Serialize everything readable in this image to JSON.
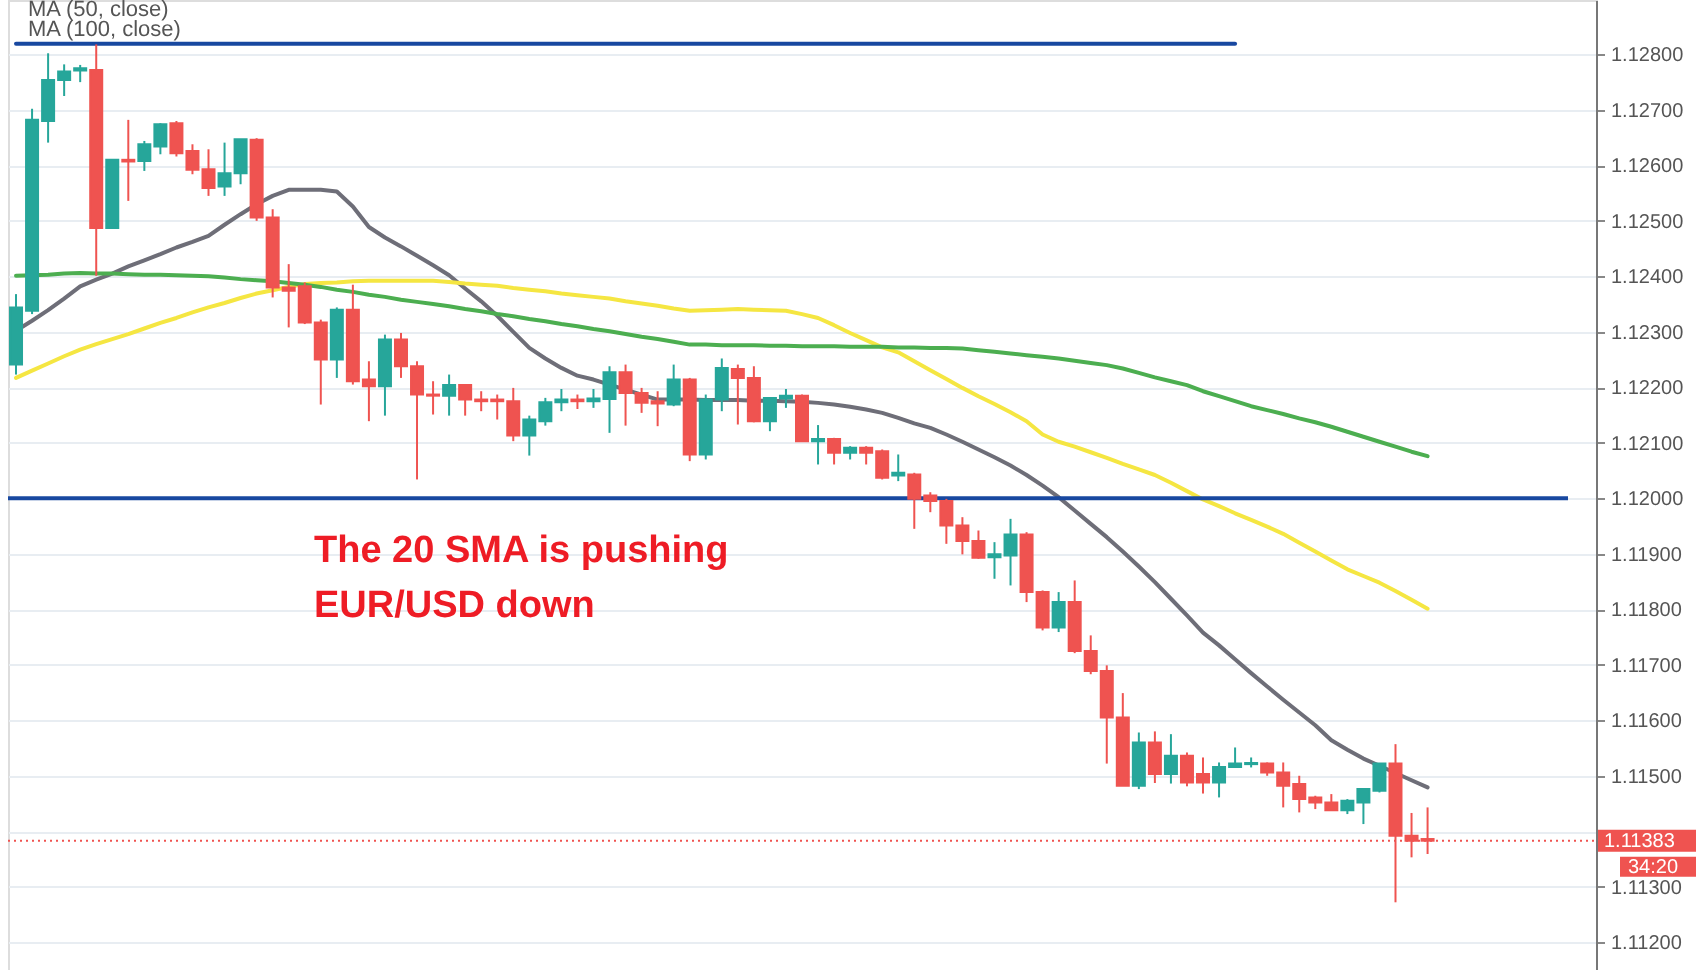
{
  "chart_data": {
    "type": "candlestick",
    "categories": [
      null,
      null,
      null,
      null,
      null,
      null,
      null,
      null,
      null,
      null,
      null,
      null,
      null,
      null,
      null,
      null,
      null,
      null,
      null,
      null,
      null,
      null,
      null,
      null,
      null,
      null,
      null,
      null,
      null,
      null,
      null,
      null,
      null,
      null,
      null,
      null,
      null,
      null,
      null,
      null,
      null,
      null,
      null,
      null,
      null,
      null,
      null,
      null,
      null,
      null,
      null,
      null,
      null,
      null,
      null,
      null,
      null,
      null,
      null,
      null,
      null,
      null,
      null,
      null,
      null,
      null,
      null,
      null,
      null,
      null,
      null,
      null,
      null,
      null,
      null,
      null,
      null,
      null,
      null,
      null,
      null,
      null,
      null,
      null,
      null,
      null,
      null,
      null,
      null,
      null,
      null,
      null,
      null,
      null,
      null,
      null,
      null,
      null,
      null
    ],
    "ohlc": [
      [
        1.12241,
        1.12368,
        1.12223,
        1.12344
      ],
      [
        1.12338,
        1.12702,
        1.12332,
        1.12682
      ],
      [
        1.1268,
        1.12802,
        1.12641,
        1.12754
      ],
      [
        1.12754,
        1.12782,
        1.12725,
        1.12769
      ],
      [
        1.12771,
        1.12781,
        1.1275,
        1.12775
      ],
      [
        1.12772,
        1.12818,
        1.12401,
        1.12487
      ],
      [
        1.12487,
        1.1261,
        1.12487,
        1.1261
      ],
      [
        1.1261,
        1.12682,
        1.12536,
        1.12607
      ],
      [
        1.12608,
        1.12644,
        1.1259,
        1.12638
      ],
      [
        1.12634,
        1.12676,
        1.1262,
        1.12674
      ],
      [
        1.12676,
        1.1268,
        1.12616,
        1.12622
      ],
      [
        1.12626,
        1.12638,
        1.12584,
        1.12592
      ],
      [
        1.12593,
        1.12629,
        1.12545,
        1.12559
      ],
      [
        1.12562,
        1.12641,
        1.12545,
        1.12586
      ],
      [
        1.12586,
        1.12647,
        1.12566,
        1.12647
      ],
      [
        1.12646,
        1.12649,
        1.125,
        1.12506
      ],
      [
        1.12506,
        1.12521,
        1.12362,
        1.1238
      ],
      [
        1.1238,
        1.12422,
        1.12308,
        1.12374
      ],
      [
        1.12382,
        1.12389,
        1.12314,
        1.12317
      ],
      [
        1.12317,
        1.12322,
        1.12169,
        1.1225
      ],
      [
        1.1225,
        1.12344,
        1.12217,
        1.1234
      ],
      [
        1.1234,
        1.12385,
        1.12205,
        1.12211
      ],
      [
        1.12214,
        1.12247,
        1.12139,
        1.12202
      ],
      [
        1.12202,
        1.12295,
        1.12149,
        1.12286
      ],
      [
        1.12286,
        1.12298,
        1.12217,
        1.12238
      ],
      [
        1.12238,
        1.12247,
        1.12034,
        1.12187
      ],
      [
        1.12187,
        1.12211,
        1.12151,
        1.12185
      ],
      [
        1.12185,
        1.12223,
        1.12149,
        1.12204
      ],
      [
        1.12204,
        1.12205,
        1.12149,
        1.12178
      ],
      [
        1.12178,
        1.12193,
        1.12157,
        1.12175
      ],
      [
        1.12178,
        1.12187,
        1.12142,
        1.12175
      ],
      [
        1.12175,
        1.12199,
        1.12103,
        1.12113
      ],
      [
        1.12113,
        1.12149,
        1.12077,
        1.12142
      ],
      [
        1.12139,
        1.12181,
        1.12131,
        1.12173
      ],
      [
        1.12173,
        1.12197,
        1.12157,
        1.12178
      ],
      [
        1.12178,
        1.12187,
        1.12161,
        1.12175
      ],
      [
        1.12175,
        1.12197,
        1.12163,
        1.1218
      ],
      [
        1.12179,
        1.12238,
        1.12118,
        1.12227
      ],
      [
        1.12227,
        1.12241,
        1.12131,
        1.1219
      ],
      [
        1.1219,
        1.12199,
        1.12154,
        1.12172
      ],
      [
        1.12175,
        1.12193,
        1.1213,
        1.12171
      ],
      [
        1.12169,
        1.12241,
        1.12166,
        1.12214
      ],
      [
        1.12214,
        1.12217,
        1.12067,
        1.12079
      ],
      [
        1.12079,
        1.12187,
        1.1207,
        1.12178
      ],
      [
        1.12178,
        1.12252,
        1.12157,
        1.12235
      ],
      [
        1.12233,
        1.12241,
        1.12133,
        1.12217
      ],
      [
        1.12217,
        1.12238,
        1.12137,
        1.12139
      ],
      [
        1.12139,
        1.12181,
        1.12121,
        1.12181
      ],
      [
        1.1218,
        1.12197,
        1.12163,
        1.12185
      ],
      [
        1.12185,
        1.12187,
        1.12103,
        1.12103
      ],
      [
        1.12103,
        1.12132,
        1.12061,
        1.12107
      ],
      [
        1.12107,
        1.12109,
        1.12061,
        1.12082
      ],
      [
        1.12082,
        1.12094,
        1.1207,
        1.12091
      ],
      [
        1.12091,
        1.12094,
        1.12061,
        1.12082
      ],
      [
        1.12085,
        1.12088,
        1.12034,
        1.12037
      ],
      [
        1.12041,
        1.12079,
        1.12031,
        1.12046
      ],
      [
        1.12043,
        1.12046,
        1.11945,
        1.11999
      ],
      [
        1.12005,
        1.12011,
        1.11975,
        1.11995
      ],
      [
        1.11995,
        1.11999,
        1.11918,
        1.11951
      ],
      [
        1.11951,
        1.11966,
        1.11899,
        1.11923
      ],
      [
        1.11923,
        1.11942,
        1.11891,
        1.11893
      ],
      [
        1.11894,
        1.11921,
        1.11855,
        1.11899
      ],
      [
        1.11897,
        1.11963,
        1.11843,
        1.11935
      ],
      [
        1.11935,
        1.11939,
        1.11813,
        1.11831
      ],
      [
        1.11831,
        1.11834,
        1.11762,
        1.11767
      ],
      [
        1.11767,
        1.11831,
        1.11759,
        1.11813
      ],
      [
        1.11813,
        1.11852,
        1.11721,
        1.11725
      ],
      [
        1.11725,
        1.11753,
        1.11683,
        1.11689
      ],
      [
        1.11689,
        1.11699,
        1.11522,
        1.11605
      ],
      [
        1.11605,
        1.11649,
        1.11482,
        1.11482
      ],
      [
        1.11482,
        1.11578,
        1.11476,
        1.1156
      ],
      [
        1.1156,
        1.1158,
        1.11487,
        1.11503
      ],
      [
        1.11503,
        1.11575,
        1.11486,
        1.11536
      ],
      [
        1.11536,
        1.11542,
        1.11481,
        1.11488
      ],
      [
        1.11503,
        1.11533,
        1.11468,
        1.11488
      ],
      [
        1.11488,
        1.11524,
        1.11461,
        1.11516
      ],
      [
        1.11516,
        1.11551,
        1.11515,
        1.11522
      ],
      [
        1.11521,
        1.11533,
        1.11515,
        1.11523
      ],
      [
        1.11522,
        1.11524,
        1.115,
        1.11506
      ],
      [
        1.11506,
        1.11524,
        1.11443,
        1.11482
      ],
      [
        1.11485,
        1.115,
        1.11434,
        1.11458
      ],
      [
        1.11461,
        1.11464,
        1.1144,
        1.11452
      ],
      [
        1.11452,
        1.11467,
        1.11438,
        1.11438
      ],
      [
        1.11438,
        1.11458,
        1.11431,
        1.11455
      ],
      [
        1.11452,
        1.11476,
        1.11413,
        1.11476
      ],
      [
        1.11473,
        1.11522,
        1.1147,
        1.11522
      ],
      [
        1.11522,
        1.11557,
        1.11272,
        1.11392
      ],
      [
        1.11392,
        1.11433,
        1.11353,
        1.11383
      ],
      [
        1.11386,
        1.11443,
        1.11359,
        1.11383
      ],
      null,
      null,
      null,
      null,
      null,
      null,
      null,
      null,
      null,
      null
    ],
    "colors": [
      "#26a69a",
      "#26a69a",
      "#26a69a",
      "#26a69a",
      "#26a69a",
      "#ef5350",
      "#26a69a",
      "#ef5350",
      "#26a69a",
      "#26a69a",
      "#ef5350",
      "#ef5350",
      "#ef5350",
      "#26a69a",
      "#26a69a",
      "#ef5350",
      "#ef5350",
      "#ef5350",
      "#ef5350",
      "#ef5350",
      "#26a69a",
      "#ef5350",
      "#ef5350",
      "#26a69a",
      "#ef5350",
      "#ef5350",
      "#ef5350",
      "#26a69a",
      "#ef5350",
      "#ef5350",
      "#ef5350",
      "#ef5350",
      "#26a69a",
      "#26a69a",
      "#26a69a",
      "#ef5350",
      "#26a69a",
      "#26a69a",
      "#ef5350",
      "#ef5350",
      "#ef5350",
      "#26a69a",
      "#ef5350",
      "#26a69a",
      "#26a69a",
      "#ef5350",
      "#ef5350",
      "#26a69a",
      "#26a69a",
      "#ef5350",
      "#26a69a",
      "#ef5350",
      "#26a69a",
      "#ef5350",
      "#ef5350",
      "#26a69a",
      "#ef5350",
      "#ef5350",
      "#ef5350",
      "#ef5350",
      "#ef5350",
      "#26a69a",
      "#26a69a",
      "#ef5350",
      "#ef5350",
      "#26a69a",
      "#ef5350",
      "#ef5350",
      "#ef5350",
      "#ef5350",
      "#26a69a",
      "#ef5350",
      "#26a69a",
      "#ef5350",
      "#ef5350",
      "#26a69a",
      "#26a69a",
      "#26a69a",
      "#ef5350",
      "#ef5350",
      "#ef5350",
      "#ef5350",
      "#ef5350",
      "#26a69a",
      "#26a69a",
      "#26a69a",
      "#ef5350",
      "#ef5350",
      "#ef5350",
      null,
      null,
      null,
      null,
      null,
      null,
      null,
      null,
      null,
      null
    ],
    "series": [
      {
        "type": "line",
        "color": "#6e6e78",
        "values": [
          1.12302,
          1.1232,
          1.12339,
          1.1236,
          1.12382,
          1.12394,
          1.12405,
          1.12418,
          1.12429,
          1.1244,
          1.12452,
          1.12462,
          1.12473,
          1.12493,
          1.12512,
          1.1253,
          1.12545,
          1.12556,
          1.12556,
          1.12556,
          1.12553,
          1.12526,
          1.12489,
          1.1247,
          1.12454,
          1.12437,
          1.1242,
          1.12402,
          1.12378,
          1.12355,
          1.12329,
          1.123,
          1.12271,
          1.12252,
          1.12235,
          1.12221,
          1.12214,
          1.12205,
          1.12196,
          1.12187,
          1.12178,
          1.12178,
          1.12178,
          1.12177,
          1.12177,
          1.12177,
          1.12176,
          1.12176,
          1.12175,
          1.12174,
          1.12172,
          1.12169,
          1.12165,
          1.1216,
          1.12154,
          1.12145,
          1.12135,
          1.12127,
          1.12115,
          1.12102,
          1.12088,
          1.12074,
          1.12059,
          1.12042,
          1.12023,
          1.12002,
          1.11978,
          1.11954,
          1.1193,
          1.11904,
          1.11877,
          1.11849,
          1.11819,
          1.11789,
          1.11758,
          1.11735,
          1.1171,
          1.11685,
          1.11661,
          1.11637,
          1.11614,
          1.11591,
          1.11564,
          1.11547,
          1.11531,
          1.11518,
          1.11505,
          1.11492,
          1.11479,
          null,
          null,
          null,
          null,
          null,
          null,
          null,
          null,
          null,
          null
        ]
      },
      {
        "type": "line",
        "color": "#f5e642",
        "values": [
          1.12217,
          1.1223,
          1.12243,
          1.12256,
          1.12268,
          1.12278,
          1.12287,
          1.12296,
          1.12306,
          1.12316,
          1.12325,
          1.12335,
          1.12344,
          1.12352,
          1.12361,
          1.12369,
          1.12375,
          1.12381,
          1.12386,
          1.12388,
          1.12389,
          1.12391,
          1.12392,
          1.12392,
          1.12392,
          1.12392,
          1.12392,
          1.1239,
          1.12387,
          1.12385,
          1.12383,
          1.12379,
          1.12376,
          1.12373,
          1.12369,
          1.12366,
          1.12363,
          1.1236,
          1.12355,
          1.12351,
          1.12347,
          1.12342,
          1.12338,
          1.12339,
          1.1234,
          1.12341,
          1.1234,
          1.12339,
          1.12338,
          1.12332,
          1.12325,
          1.12312,
          1.12298,
          1.12285,
          1.12272,
          1.12263,
          1.12247,
          1.12231,
          1.12215,
          1.12199,
          1.12184,
          1.1217,
          1.12155,
          1.12139,
          1.12115,
          1.12102,
          1.12093,
          1.12083,
          1.12073,
          1.12062,
          1.12052,
          1.12042,
          1.12028,
          1.12013,
          1.11998,
          1.11986,
          1.11973,
          1.11961,
          1.11949,
          1.11936,
          1.1192,
          1.11904,
          1.11888,
          1.11872,
          1.1186,
          1.11848,
          1.11833,
          1.11817,
          1.11801,
          null,
          null,
          null,
          null,
          null,
          null,
          null,
          null,
          null,
          null
        ]
      },
      {
        "type": "line",
        "color": "#4cae50",
        "values": [
          1.12401,
          1.12402,
          1.12403,
          1.12405,
          1.12406,
          1.12405,
          1.12405,
          1.12404,
          1.12403,
          1.12403,
          1.12402,
          1.12401,
          1.124,
          1.12398,
          1.12395,
          1.12393,
          1.12391,
          1.12388,
          1.12385,
          1.12381,
          1.12376,
          1.12372,
          1.12367,
          1.12363,
          1.12358,
          1.12354,
          1.1235,
          1.12346,
          1.12341,
          1.12337,
          1.12332,
          1.12328,
          1.12323,
          1.12319,
          1.12314,
          1.1231,
          1.12305,
          1.12301,
          1.12296,
          1.12291,
          1.12287,
          1.12282,
          1.12277,
          1.12277,
          1.12276,
          1.12276,
          1.12276,
          1.12275,
          1.12275,
          1.12274,
          1.12274,
          1.12274,
          1.12273,
          1.12273,
          1.12273,
          1.12272,
          1.12272,
          1.12271,
          1.12271,
          1.1227,
          1.12267,
          1.12264,
          1.12261,
          1.12258,
          1.12255,
          1.12252,
          1.12248,
          1.12244,
          1.1224,
          1.12234,
          1.12226,
          1.12218,
          1.12211,
          1.12204,
          1.12193,
          1.12184,
          1.12175,
          1.12166,
          1.12159,
          1.12152,
          1.12144,
          1.12137,
          1.12129,
          1.1212,
          1.12111,
          1.12102,
          1.12093,
          1.12084,
          1.12076,
          null,
          null,
          null,
          null,
          null,
          null,
          null,
          null,
          null,
          null
        ]
      },
      {
        "type": "line",
        "color": "#1848a0",
        "values": [
          1.12819,
          1.12819,
          1.12819,
          1.12819,
          1.12819,
          1.12819,
          1.12819,
          1.12819,
          1.12819,
          1.12819,
          1.12819,
          1.12819,
          1.12819,
          1.12819,
          1.12819,
          1.12819,
          1.12819,
          1.12819,
          1.12819,
          1.12819,
          1.12819,
          1.12819,
          1.12819,
          1.12819,
          1.12819,
          1.12819,
          1.12819,
          1.12819,
          1.12819,
          1.12819,
          1.12819,
          1.12819,
          1.12819,
          1.12819,
          1.12819,
          1.12819,
          1.12819,
          1.12819,
          1.12819,
          1.12819,
          1.12819,
          1.12819,
          1.12819,
          1.12819,
          1.12819,
          1.12819,
          1.12819,
          1.12819,
          1.12819,
          1.12819,
          1.12819,
          1.12819,
          1.12819,
          1.12819,
          1.12819,
          1.12819,
          1.12819,
          1.12819,
          1.12819,
          1.12819,
          1.12819,
          1.12819,
          1.12819,
          1.12819,
          1.12819,
          1.12819,
          1.12819,
          1.12819,
          1.12819,
          1.12819,
          1.12819,
          1.12819,
          1.12819,
          1.12819,
          1.12819,
          1.12819,
          1.12819,
          null,
          null,
          null,
          null,
          null,
          null,
          null,
          null,
          null,
          null,
          null,
          null,
          null,
          null,
          null,
          null,
          null,
          null,
          null,
          null,
          null,
          null
        ]
      }
    ],
    "ylim": [
      1.1115,
      1.12898
    ],
    "yticks": [
      {
        "value": 1.112,
        "label": "1.11200"
      },
      {
        "value": 1.113,
        "label": "1.11300"
      },
      {
        "value": 1.114,
        "label": null
      },
      {
        "value": 1.115,
        "label": "1.11500"
      },
      {
        "value": 1.116,
        "label": "1.11600"
      },
      {
        "value": 1.117,
        "label": "1.11700"
      },
      {
        "value": 1.118,
        "label": "1.11800"
      },
      {
        "value": 1.119,
        "label": "1.11900"
      },
      {
        "value": 1.12,
        "label": "1.12000"
      },
      {
        "value": 1.121,
        "label": "1.12100"
      },
      {
        "value": 1.122,
        "label": "1.12200"
      },
      {
        "value": 1.123,
        "label": "1.12300"
      },
      {
        "value": 1.124,
        "label": "1.12400"
      },
      {
        "value": 1.125,
        "label": "1.12500"
      },
      {
        "value": 1.126,
        "label": "1.12600"
      },
      {
        "value": 1.127,
        "label": "1.12700"
      },
      {
        "value": 1.128,
        "label": "1.12800"
      }
    ],
    "ref_lines": [
      {
        "axis": "y",
        "value": 1.12,
        "color": "#1848a0",
        "line_style": "solid"
      },
      {
        "axis": "y",
        "value": 1.11383,
        "label": "1.11383",
        "color": "#ef5350",
        "line_style": "dotted"
      }
    ],
    "annotations": [
      "MA (50, close)",
      "MA (100, close)",
      "The 20 SMA is pushing\nEUR/USD down",
      "34:20"
    ],
    "grid": "y",
    "tick_labels": "y"
  }
}
